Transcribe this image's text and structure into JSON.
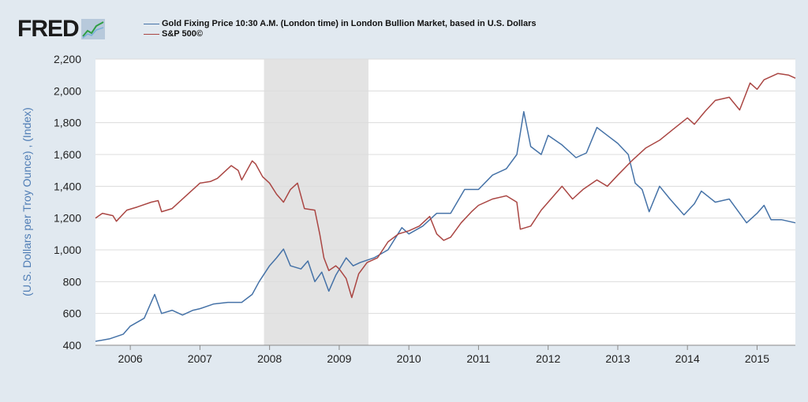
{
  "logo": {
    "text": "FRED",
    "mark": "fred-chart-logo-icon"
  },
  "chart_data": {
    "type": "line",
    "title": "",
    "ylabel": "(U.S. Dollars per Troy Ounce) , (Index)",
    "xlabel": "",
    "ylim": [
      400,
      2200
    ],
    "yticks": [
      400,
      600,
      800,
      1000,
      1200,
      1400,
      1600,
      1800,
      2000,
      2200
    ],
    "ytick_labels": [
      "400",
      "600",
      "800",
      "1,000",
      "1,200",
      "1,400",
      "1,600",
      "1,800",
      "2,000",
      "2,200"
    ],
    "xlim": [
      2005.5,
      2015.55
    ],
    "xticks": [
      2006,
      2007,
      2008,
      2009,
      2010,
      2011,
      2012,
      2013,
      2014,
      2015
    ],
    "xtick_labels": [
      "2006",
      "2007",
      "2008",
      "2009",
      "2010",
      "2011",
      "2012",
      "2013",
      "2014",
      "2015"
    ],
    "grid": true,
    "legend_position": "top-left",
    "recession_shading": [
      [
        2007.92,
        2009.42
      ]
    ],
    "series": [
      {
        "name": "Gold Fixing Price 10:30 A.M. (London time) in London Bullion Market, based in U.S. Dollars",
        "color": "#4572a7",
        "points": [
          [
            2005.5,
            425
          ],
          [
            2005.7,
            440
          ],
          [
            2005.9,
            470
          ],
          [
            2006.0,
            520
          ],
          [
            2006.2,
            570
          ],
          [
            2006.35,
            720
          ],
          [
            2006.45,
            600
          ],
          [
            2006.6,
            620
          ],
          [
            2006.75,
            590
          ],
          [
            2006.9,
            620
          ],
          [
            2007.0,
            630
          ],
          [
            2007.2,
            660
          ],
          [
            2007.4,
            670
          ],
          [
            2007.6,
            670
          ],
          [
            2007.75,
            720
          ],
          [
            2007.85,
            800
          ],
          [
            2008.0,
            900
          ],
          [
            2008.1,
            950
          ],
          [
            2008.2,
            1005
          ],
          [
            2008.3,
            900
          ],
          [
            2008.45,
            880
          ],
          [
            2008.55,
            930
          ],
          [
            2008.65,
            800
          ],
          [
            2008.75,
            860
          ],
          [
            2008.85,
            740
          ],
          [
            2008.95,
            840
          ],
          [
            2009.1,
            950
          ],
          [
            2009.2,
            900
          ],
          [
            2009.3,
            920
          ],
          [
            2009.5,
            950
          ],
          [
            2009.7,
            1000
          ],
          [
            2009.9,
            1140
          ],
          [
            2010.0,
            1100
          ],
          [
            2010.2,
            1150
          ],
          [
            2010.4,
            1230
          ],
          [
            2010.6,
            1230
          ],
          [
            2010.8,
            1380
          ],
          [
            2011.0,
            1380
          ],
          [
            2011.2,
            1470
          ],
          [
            2011.4,
            1510
          ],
          [
            2011.55,
            1600
          ],
          [
            2011.65,
            1870
          ],
          [
            2011.75,
            1650
          ],
          [
            2011.9,
            1600
          ],
          [
            2012.0,
            1720
          ],
          [
            2012.2,
            1660
          ],
          [
            2012.4,
            1580
          ],
          [
            2012.55,
            1610
          ],
          [
            2012.7,
            1770
          ],
          [
            2012.85,
            1720
          ],
          [
            2013.0,
            1670
          ],
          [
            2013.15,
            1600
          ],
          [
            2013.25,
            1420
          ],
          [
            2013.35,
            1380
          ],
          [
            2013.45,
            1240
          ],
          [
            2013.6,
            1400
          ],
          [
            2013.75,
            1320
          ],
          [
            2013.95,
            1220
          ],
          [
            2014.1,
            1290
          ],
          [
            2014.2,
            1370
          ],
          [
            2014.4,
            1300
          ],
          [
            2014.6,
            1320
          ],
          [
            2014.75,
            1230
          ],
          [
            2014.85,
            1170
          ],
          [
            2015.0,
            1230
          ],
          [
            2015.1,
            1280
          ],
          [
            2015.2,
            1190
          ],
          [
            2015.35,
            1190
          ],
          [
            2015.55,
            1170
          ]
        ]
      },
      {
        "name": "S&P 500©",
        "color": "#aa4643",
        "points": [
          [
            2005.5,
            1200
          ],
          [
            2005.6,
            1230
          ],
          [
            2005.75,
            1215
          ],
          [
            2005.8,
            1180
          ],
          [
            2005.95,
            1250
          ],
          [
            2006.1,
            1270
          ],
          [
            2006.3,
            1300
          ],
          [
            2006.4,
            1310
          ],
          [
            2006.45,
            1240
          ],
          [
            2006.6,
            1260
          ],
          [
            2006.8,
            1340
          ],
          [
            2007.0,
            1420
          ],
          [
            2007.15,
            1430
          ],
          [
            2007.25,
            1450
          ],
          [
            2007.45,
            1530
          ],
          [
            2007.55,
            1500
          ],
          [
            2007.6,
            1440
          ],
          [
            2007.75,
            1560
          ],
          [
            2007.8,
            1540
          ],
          [
            2007.9,
            1460
          ],
          [
            2008.0,
            1420
          ],
          [
            2008.1,
            1350
          ],
          [
            2008.2,
            1300
          ],
          [
            2008.3,
            1380
          ],
          [
            2008.4,
            1420
          ],
          [
            2008.5,
            1260
          ],
          [
            2008.65,
            1250
          ],
          [
            2008.72,
            1100
          ],
          [
            2008.78,
            950
          ],
          [
            2008.85,
            870
          ],
          [
            2008.95,
            900
          ],
          [
            2009.0,
            880
          ],
          [
            2009.1,
            820
          ],
          [
            2009.18,
            700
          ],
          [
            2009.28,
            850
          ],
          [
            2009.4,
            920
          ],
          [
            2009.55,
            950
          ],
          [
            2009.7,
            1050
          ],
          [
            2009.85,
            1100
          ],
          [
            2010.0,
            1120
          ],
          [
            2010.15,
            1150
          ],
          [
            2010.3,
            1210
          ],
          [
            2010.4,
            1100
          ],
          [
            2010.5,
            1060
          ],
          [
            2010.6,
            1080
          ],
          [
            2010.75,
            1170
          ],
          [
            2010.9,
            1240
          ],
          [
            2011.0,
            1280
          ],
          [
            2011.2,
            1320
          ],
          [
            2011.4,
            1340
          ],
          [
            2011.55,
            1300
          ],
          [
            2011.6,
            1130
          ],
          [
            2011.75,
            1150
          ],
          [
            2011.9,
            1250
          ],
          [
            2012.0,
            1300
          ],
          [
            2012.2,
            1400
          ],
          [
            2012.35,
            1320
          ],
          [
            2012.5,
            1380
          ],
          [
            2012.7,
            1440
          ],
          [
            2012.85,
            1400
          ],
          [
            2013.0,
            1470
          ],
          [
            2013.2,
            1560
          ],
          [
            2013.4,
            1640
          ],
          [
            2013.6,
            1690
          ],
          [
            2013.8,
            1760
          ],
          [
            2014.0,
            1830
          ],
          [
            2014.1,
            1790
          ],
          [
            2014.25,
            1870
          ],
          [
            2014.4,
            1940
          ],
          [
            2014.6,
            1960
          ],
          [
            2014.75,
            1880
          ],
          [
            2014.9,
            2050
          ],
          [
            2015.0,
            2010
          ],
          [
            2015.1,
            2070
          ],
          [
            2015.3,
            2110
          ],
          [
            2015.45,
            2100
          ],
          [
            2015.55,
            2080
          ]
        ]
      }
    ]
  }
}
